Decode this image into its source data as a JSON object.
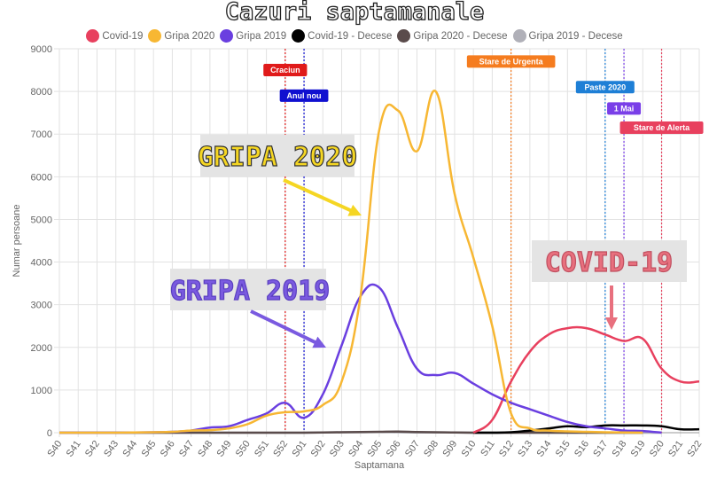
{
  "chart_data": {
    "type": "line",
    "title": "Cazuri saptamanale",
    "xlabel": "Saptamana",
    "ylabel": "Numar persoane",
    "ylim": [
      0,
      9000
    ],
    "yticks": [
      0,
      1000,
      2000,
      3000,
      4000,
      5000,
      6000,
      7000,
      8000,
      9000
    ],
    "grid": true,
    "legend_position": "top",
    "categories": [
      "S40",
      "S41",
      "S42",
      "S43",
      "S44",
      "S45",
      "S46",
      "S47",
      "S48",
      "S49",
      "S50",
      "S51",
      "S52",
      "S01",
      "S02",
      "S03",
      "S04",
      "S05",
      "S06",
      "S07",
      "S08",
      "S09",
      "S10",
      "S11",
      "S12",
      "S13",
      "S14",
      "S15",
      "S16",
      "S17",
      "S18",
      "S19",
      "S20",
      "S21",
      "S22"
    ],
    "series": [
      {
        "name": "Covid-19",
        "color": "#e8405e",
        "values": [
          null,
          null,
          null,
          null,
          null,
          null,
          null,
          null,
          null,
          null,
          null,
          null,
          null,
          null,
          null,
          null,
          null,
          null,
          null,
          null,
          null,
          null,
          0,
          300,
          1200,
          1900,
          2300,
          2450,
          2450,
          2300,
          2150,
          2200,
          1500,
          1200,
          1200
        ]
      },
      {
        "name": "Gripa 2020",
        "color": "#f7b733",
        "values": [
          0,
          0,
          0,
          0,
          5,
          10,
          20,
          50,
          60,
          100,
          200,
          400,
          480,
          500,
          650,
          1200,
          3200,
          7100,
          7550,
          6600,
          8000,
          5600,
          4100,
          2500,
          450,
          100,
          50,
          30,
          20,
          10,
          5,
          0,
          null,
          null,
          null
        ]
      },
      {
        "name": "Gripa 2019",
        "color": "#6a3fe0",
        "values": [
          0,
          0,
          0,
          0,
          5,
          10,
          20,
          50,
          120,
          150,
          300,
          450,
          700,
          350,
          900,
          2050,
          3200,
          3400,
          2450,
          1500,
          1350,
          1400,
          1150,
          900,
          700,
          550,
          400,
          250,
          150,
          100,
          50,
          40,
          0,
          null,
          null
        ]
      },
      {
        "name": "Covid-19 - Decese",
        "color": "#000000",
        "values": [
          null,
          null,
          null,
          null,
          null,
          null,
          null,
          null,
          null,
          null,
          null,
          null,
          null,
          null,
          null,
          null,
          null,
          null,
          null,
          null,
          null,
          null,
          0,
          0,
          10,
          50,
          100,
          150,
          130,
          170,
          170,
          170,
          150,
          80,
          80
        ]
      },
      {
        "name": "Gripa 2020 - Decese",
        "color": "#5a4b4b",
        "values": [
          0,
          0,
          0,
          0,
          0,
          0,
          0,
          0,
          0,
          0,
          0,
          0,
          0,
          0,
          5,
          10,
          15,
          20,
          25,
          15,
          10,
          5,
          0,
          0,
          0,
          0,
          0,
          0,
          0,
          0,
          0,
          0,
          null,
          null,
          null
        ]
      },
      {
        "name": "Gripa 2019 - Decese",
        "color": "#b0b0b8",
        "values": [
          0,
          0,
          0,
          0,
          0,
          0,
          0,
          0,
          0,
          0,
          0,
          0,
          0,
          0,
          5,
          10,
          10,
          15,
          10,
          5,
          5,
          5,
          0,
          0,
          0,
          0,
          0,
          0,
          0,
          0,
          0,
          0,
          0,
          null,
          null
        ]
      }
    ],
    "events": [
      {
        "label": "Craciun",
        "week": "S52",
        "color": "#e01a1a",
        "level": 8500
      },
      {
        "label": "Anul nou",
        "week": "S01",
        "color": "#1010d0",
        "level": 7900
      },
      {
        "label": "Stare de Urgenta",
        "week": "S12",
        "color": "#f57c1f",
        "level": 8700
      },
      {
        "label": "Paste 2020",
        "week": "S17",
        "color": "#1e7fd6",
        "level": 8100
      },
      {
        "label": "1 Mai",
        "week": "S18",
        "color": "#7a3fe8",
        "level": 7600
      },
      {
        "label": "Stare de Alerta",
        "week": "S20",
        "color": "#e8405e",
        "level": 7150
      }
    ],
    "annotations": [
      {
        "text": "GRIPA 2020",
        "color": "#f5d623"
      },
      {
        "text": "GRIPA 2019",
        "color": "#7a5ae0"
      },
      {
        "text": "COVID-19",
        "color": "#e8707e"
      }
    ]
  }
}
